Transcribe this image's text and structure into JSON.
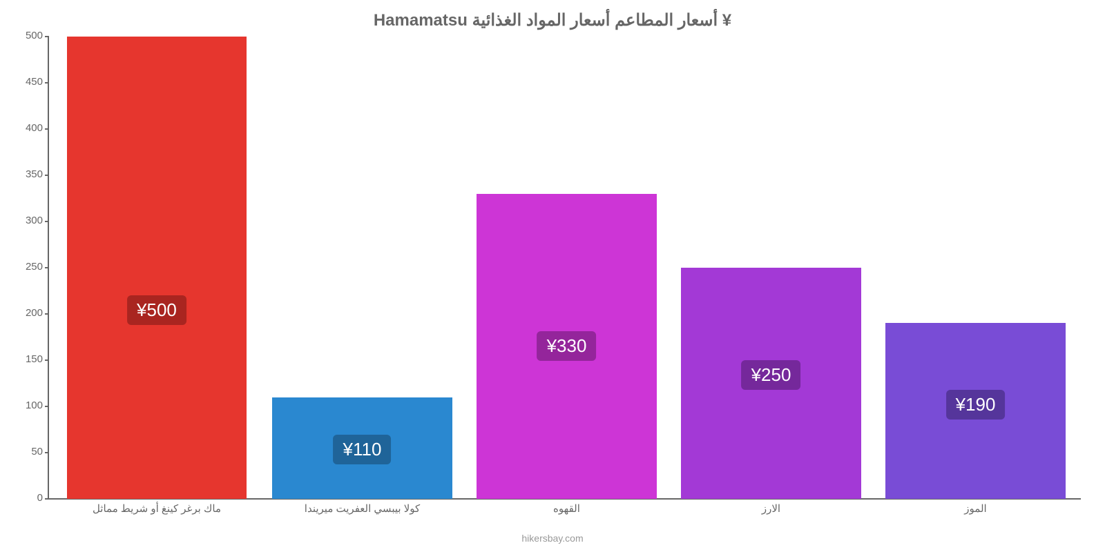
{
  "chart": {
    "type": "bar",
    "title": "Hamamatsu أسعار المطاعم أسعار المواد الغذائية ¥",
    "title_color": "#666666",
    "title_fontsize": 24,
    "background_color": "#ffffff",
    "attribution": "hikersbay.com",
    "attribution_color": "#999999",
    "y_axis": {
      "min": 0,
      "max": 500,
      "tick_step": 50,
      "ticks": [
        0,
        50,
        100,
        150,
        200,
        250,
        300,
        350,
        400,
        450,
        500
      ],
      "label_color": "#666666",
      "label_fontsize": 15,
      "axis_line_color": "#666666"
    },
    "x_axis": {
      "label_color": "#666666",
      "label_fontsize": 15,
      "axis_line_color": "#666666"
    },
    "bars": [
      {
        "category": "ماك برغر كينغ أو شريط مماثل",
        "value": 500,
        "value_label": "¥500",
        "bar_color": "#e6362e",
        "badge_color": "#a92520",
        "center_pct": 10.5,
        "width_pct": 17.4,
        "badge_top_pct": 56
      },
      {
        "category": "كولا بيبسي العفريت ميريندا",
        "value": 110,
        "value_label": "¥110",
        "bar_color": "#2a88d0",
        "badge_color": "#1f6499",
        "center_pct": 30.4,
        "width_pct": 17.4,
        "badge_top_pct": 37
      },
      {
        "category": "القهوه",
        "value": 330,
        "value_label": "¥330",
        "bar_color": "#cd35d6",
        "badge_color": "#94259b",
        "center_pct": 50.2,
        "width_pct": 17.4,
        "badge_top_pct": 45
      },
      {
        "category": "الارز",
        "value": 250,
        "value_label": "¥250",
        "bar_color": "#a339d6",
        "badge_color": "#75289b",
        "center_pct": 70.0,
        "width_pct": 17.4,
        "badge_top_pct": 40
      },
      {
        "category": "الموز",
        "value": 190,
        "value_label": "¥190",
        "bar_color": "#794cd6",
        "badge_color": "#55359b",
        "center_pct": 89.8,
        "width_pct": 17.4,
        "badge_top_pct": 38
      }
    ]
  }
}
